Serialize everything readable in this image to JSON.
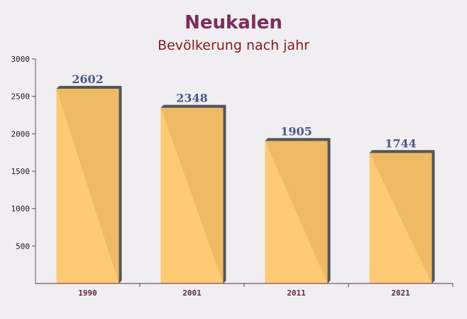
{
  "chart_data": {
    "type": "bar",
    "title": "Neukalen",
    "subtitle": "Bevölkerung nach jahr",
    "categories": [
      "1990",
      "2001",
      "2011",
      "2021"
    ],
    "values": [
      2602,
      2348,
      1905,
      1744
    ],
    "color": "#ffc566",
    "ylim": [
      0,
      3000
    ],
    "yticks": [
      500,
      1000,
      1500,
      2000,
      2500,
      3000
    ]
  }
}
